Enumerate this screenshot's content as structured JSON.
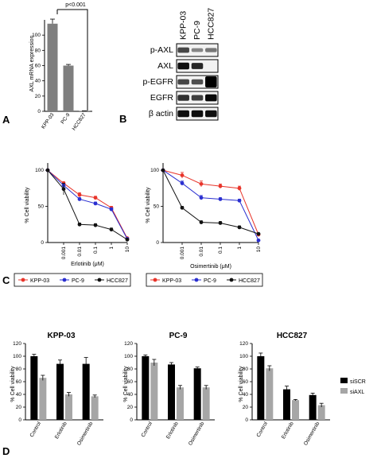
{
  "panels": {
    "a": "A",
    "b": "B",
    "c": "C",
    "d": "D"
  },
  "chart_data": [
    {
      "type": "bar",
      "id": "axl-mrna",
      "categories": [
        "KPP-03",
        "PC-9",
        "HCC827"
      ],
      "values": [
        115,
        60,
        0.5
      ],
      "errors": [
        6,
        1.5,
        0.3
      ],
      "ylabel": "AXL mRNA expression",
      "ylim": [
        0,
        120
      ],
      "yticks": [
        0,
        20,
        40,
        60,
        80,
        100
      ],
      "annotation": "p<0.001",
      "color": "#7f7f7f"
    },
    {
      "type": "line",
      "id": "erlotinib",
      "xlabel": "Erlotinib (μM)",
      "ylabel": "% Cell viability",
      "x": [
        0.0001,
        0.001,
        0.01,
        0.1,
        1,
        10
      ],
      "xtick_labels": [
        "0.001",
        "0.01",
        "0.1",
        "1",
        "10"
      ],
      "ylim": [
        0,
        110
      ],
      "yticks": [
        0,
        50,
        100
      ],
      "log_x": true,
      "series": [
        {
          "name": "KPP-03",
          "color": "#e8342a",
          "values": [
            100,
            82,
            66,
            62,
            48,
            6
          ],
          "errors": [
            0,
            2,
            3,
            2,
            2,
            1
          ]
        },
        {
          "name": "PC-9",
          "color": "#2a2fd0",
          "values": [
            100,
            79,
            60,
            54,
            46,
            5
          ],
          "errors": [
            0,
            2,
            2,
            2,
            2,
            1
          ]
        },
        {
          "name": "HCC827",
          "color": "#111111",
          "values": [
            100,
            74,
            25,
            24,
            18,
            4
          ],
          "errors": [
            0,
            8,
            2,
            2,
            2,
            1
          ]
        }
      ]
    },
    {
      "type": "line",
      "id": "osimertinib",
      "xlabel": "Osimertinib (μM)",
      "ylabel": "% Cell viability",
      "x": [
        0.0001,
        0.001,
        0.01,
        0.1,
        1,
        10
      ],
      "xtick_labels": [
        "0.001",
        "0.01",
        "0.1",
        "1",
        "10"
      ],
      "ylim": [
        0,
        110
      ],
      "yticks": [
        0,
        50,
        100
      ],
      "log_x": true,
      "series": [
        {
          "name": "KPP-03",
          "color": "#e8342a",
          "values": [
            100,
            93,
            81,
            78,
            75,
            11
          ],
          "errors": [
            0,
            4,
            4,
            3,
            3,
            1
          ]
        },
        {
          "name": "PC-9",
          "color": "#2a2fd0",
          "values": [
            100,
            82,
            62,
            60,
            58,
            3
          ],
          "errors": [
            0,
            3,
            3,
            2,
            2,
            1
          ]
        },
        {
          "name": "HCC827",
          "color": "#111111",
          "values": [
            100,
            48,
            28,
            27,
            21,
            12
          ],
          "errors": [
            0,
            2,
            2,
            2,
            2,
            1
          ]
        }
      ]
    },
    {
      "type": "bar",
      "id": "si-kpp03",
      "title": "KPP-03",
      "categories": [
        "Control",
        "Erlotinib",
        "Osimertinib"
      ],
      "ylabel": "% Cell viability",
      "ylim": [
        0,
        120
      ],
      "yticks": [
        0,
        20,
        40,
        60,
        80,
        100,
        120
      ],
      "series": [
        {
          "name": "siSCR",
          "color": "#000000",
          "values": [
            100,
            88,
            88
          ],
          "errors": [
            3,
            6,
            10
          ]
        },
        {
          "name": "siAXL",
          "color": "#a6a6a6",
          "values": [
            66,
            40,
            37
          ],
          "errors": [
            4,
            3,
            2
          ]
        }
      ]
    },
    {
      "type": "bar",
      "id": "si-pc9",
      "title": "PC-9",
      "categories": [
        "Control",
        "Erlotinib",
        "Osimertinib"
      ],
      "ylabel": "% Cell viability",
      "ylim": [
        0,
        120
      ],
      "yticks": [
        0,
        20,
        40,
        60,
        80,
        100,
        120
      ],
      "series": [
        {
          "name": "siSCR",
          "color": "#000000",
          "values": [
            100,
            87,
            81
          ],
          "errors": [
            2,
            3,
            2
          ]
        },
        {
          "name": "siAXL",
          "color": "#a6a6a6",
          "values": [
            90,
            51,
            51
          ],
          "errors": [
            5,
            3,
            3
          ]
        }
      ]
    },
    {
      "type": "bar",
      "id": "si-hcc827",
      "title": "HCC827",
      "categories": [
        "Control",
        "Erlotinib",
        "Osimertinib"
      ],
      "ylabel": "% Cell viability",
      "ylim": [
        0,
        120
      ],
      "yticks": [
        0,
        20,
        40,
        60,
        80,
        100,
        120
      ],
      "series": [
        {
          "name": "siSCR",
          "color": "#000000",
          "values": [
            100,
            48,
            39
          ],
          "errors": [
            5,
            5,
            3
          ]
        },
        {
          "name": "siAXL",
          "color": "#a6a6a6",
          "values": [
            81,
            31,
            23
          ],
          "errors": [
            4,
            1,
            3
          ]
        }
      ]
    }
  ],
  "blot": {
    "lanes": [
      "KPP-03",
      "PC-9",
      "HCC827"
    ],
    "rows": [
      {
        "label": "p-AXL",
        "bands": [
          0.55,
          0.15,
          0.25
        ]
      },
      {
        "label": "AXL",
        "bands": [
          0.9,
          0.75,
          0.0
        ]
      },
      {
        "label": "p-EGFR",
        "bands": [
          0.55,
          0.5,
          1.0
        ]
      },
      {
        "label": "EGFR",
        "bands": [
          0.7,
          0.6,
          0.95
        ]
      },
      {
        "label": "β actin",
        "bands": [
          0.9,
          0.9,
          0.9
        ]
      }
    ]
  }
}
